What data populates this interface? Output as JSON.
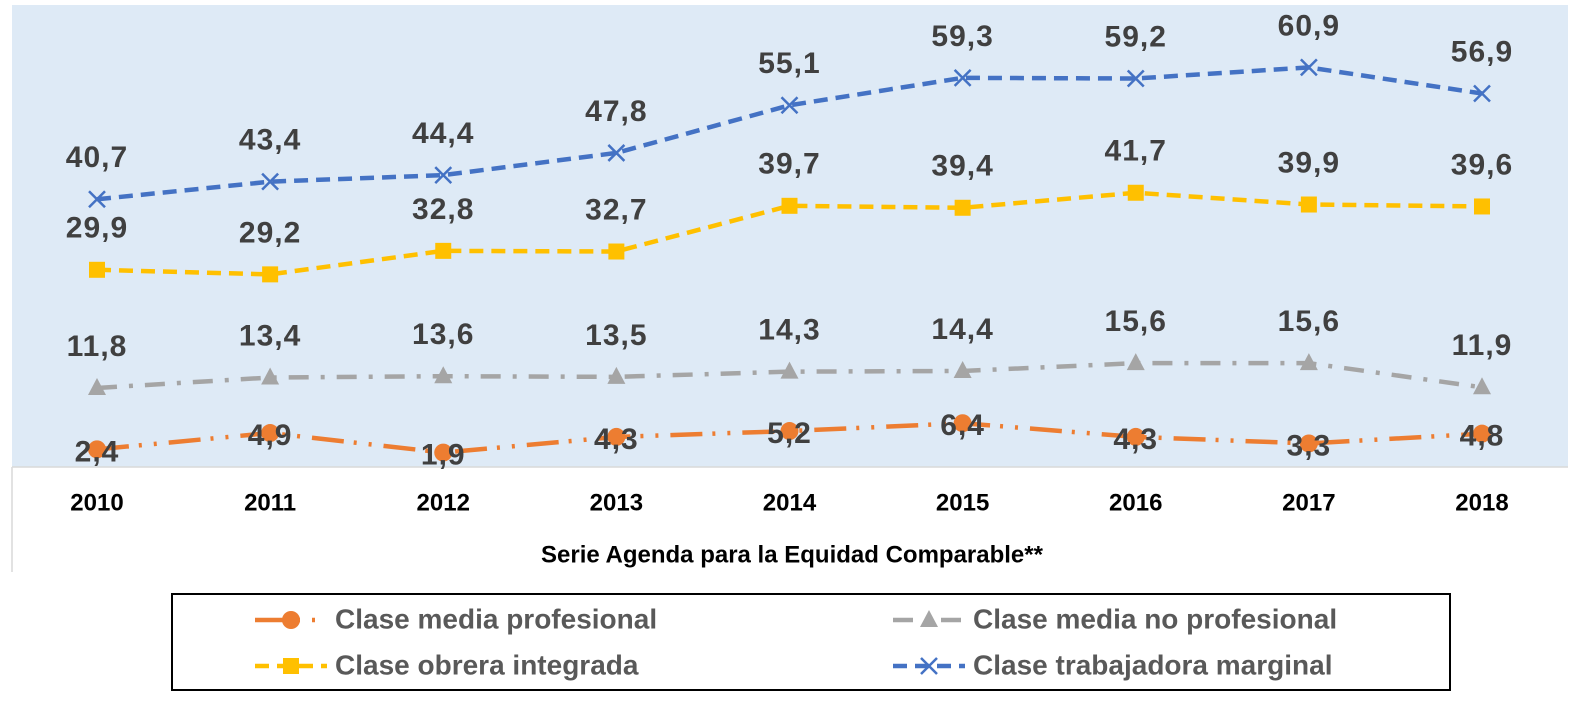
{
  "chart_data": {
    "type": "line",
    "x_label": "Serie Agenda para la Equidad Comparable**",
    "categories": [
      "2010",
      "2011",
      "2012",
      "2013",
      "2014",
      "2015",
      "2016",
      "2017",
      "2018"
    ],
    "ylim": [
      0,
      70
    ],
    "legend": "bottom",
    "series": [
      {
        "name": "Clase media profesional",
        "color": "#ED7D31",
        "marker": "circle",
        "values": [
          2.4,
          4.9,
          1.9,
          4.3,
          5.2,
          6.4,
          4.3,
          3.3,
          4.8
        ],
        "value_labels": [
          "2,4",
          "4,9",
          "1,9",
          "4,3",
          "5,2",
          "6,4",
          "4,3",
          "3,3",
          "4,8"
        ]
      },
      {
        "name": "Clase media no profesional",
        "color": "#A5A5A5",
        "marker": "triangle",
        "values": [
          11.8,
          13.4,
          13.6,
          13.5,
          14.3,
          14.4,
          15.6,
          15.6,
          11.9
        ],
        "value_labels": [
          "11,8",
          "13,4",
          "13,6",
          "13,5",
          "14,3",
          "14,4",
          "15,6",
          "15,6",
          "11,9"
        ]
      },
      {
        "name": "Clase obrera integrada",
        "color": "#FFC000",
        "marker": "square",
        "values": [
          29.9,
          29.2,
          32.8,
          32.7,
          39.7,
          39.4,
          41.7,
          39.9,
          39.6
        ],
        "value_labels": [
          "29,9",
          "29,2",
          "32,8",
          "32,7",
          "39,7",
          "39,4",
          "41,7",
          "39,9",
          "39,6"
        ]
      },
      {
        "name": "Clase trabajadora marginal",
        "color": "#4472C4",
        "marker": "x",
        "values": [
          40.7,
          43.4,
          44.4,
          47.8,
          55.1,
          59.3,
          59.2,
          60.9,
          56.9
        ],
        "value_labels": [
          "40,7",
          "43,4",
          "44,4",
          "47,8",
          "55,1",
          "59,3",
          "59,2",
          "60,9",
          "56,9"
        ]
      }
    ]
  }
}
